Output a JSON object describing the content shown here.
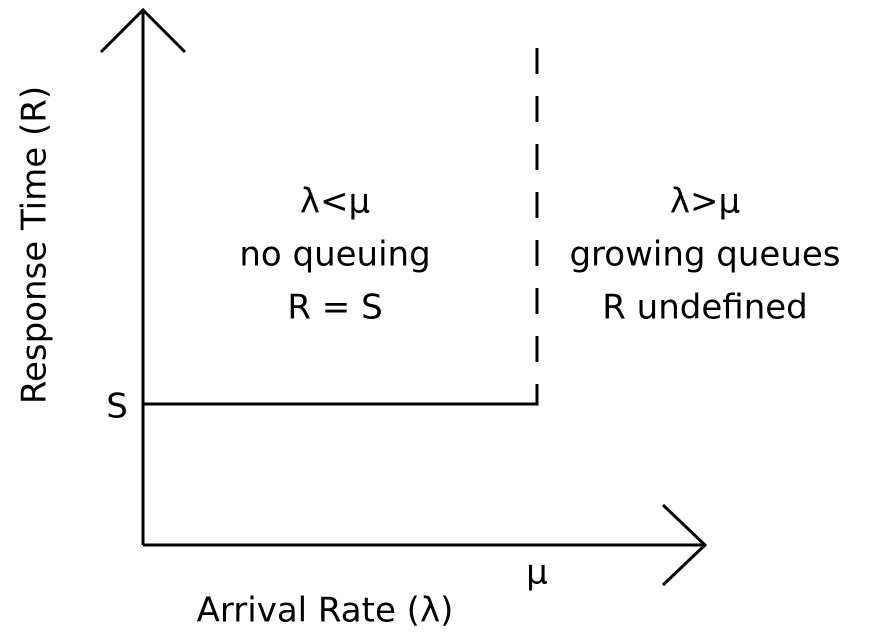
{
  "axes": {
    "y_label": "Response Time (R)",
    "x_label": "Arrival Rate (λ)",
    "y_marker": "S",
    "x_marker": "μ"
  },
  "regions": [
    {
      "lines": [
        "λ<μ",
        "no queuing",
        "R = S"
      ]
    },
    {
      "lines": [
        "λ>μ",
        "growing queues",
        "R undefined"
      ]
    }
  ]
}
